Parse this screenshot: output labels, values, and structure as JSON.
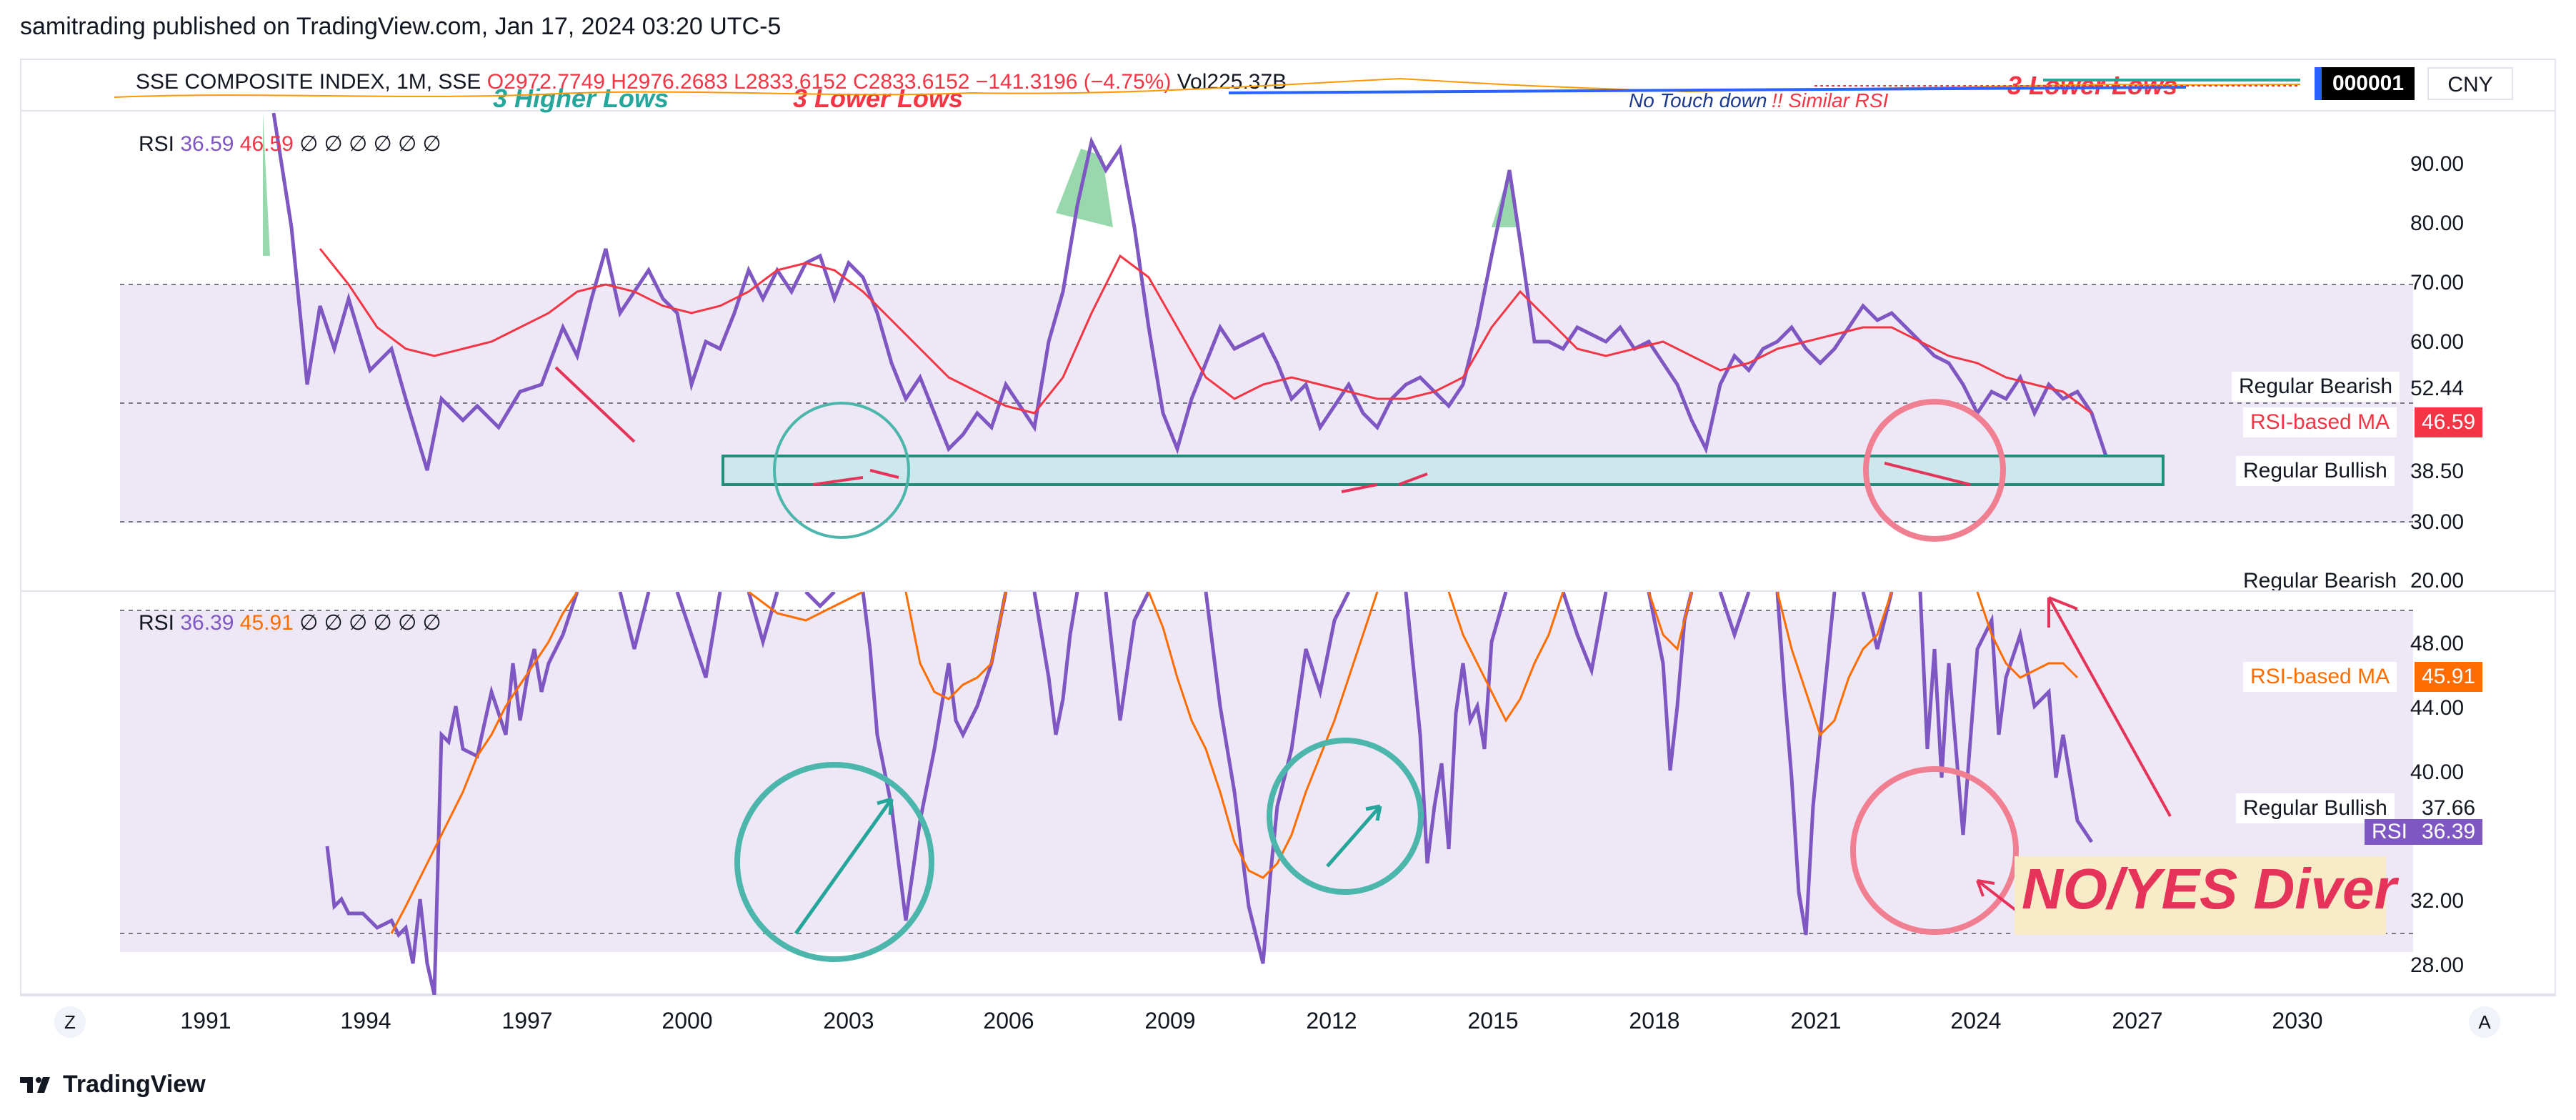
{
  "publish_line": "samitrading published on TradingView.com, Jan 17, 2024 03:20 UTC-5",
  "header": {
    "symbol": "SSE COMPOSITE INDEX, 1M, SSE",
    "open": "O2972.7749",
    "high": "H2976.2683",
    "low": "L2833.6152",
    "close": "C2833.6152",
    "change": "−141.3196 (−4.75%)",
    "volume": "Vol225.37B",
    "symbol_badge": "000001",
    "currency": "CNY",
    "overlay_texts": [
      "3 Higher Lows",
      "3 Lower Lows",
      "No Touch down",
      "!! Similar RSI",
      "3 Lower Lows"
    ]
  },
  "pane1": {
    "label": "RSI",
    "rsi_value": "36.59",
    "ma_value": "46.59",
    "placeholders": "∅ ∅ ∅ ∅ ∅ ∅",
    "y_ticks": [
      "90.00",
      "80.00",
      "70.00",
      "60.00",
      "52.44",
      "38.50",
      "30.00",
      "20.00"
    ],
    "tags": {
      "bearish": "Regular Bearish",
      "bearish_value": "52.44",
      "ma_label": "RSI-based MA",
      "ma_value": "46.59",
      "bullish": "Regular Bullish",
      "bullish_value": "38.50"
    }
  },
  "pane2": {
    "label": "RSI",
    "rsi_value": "36.39",
    "ma_value": "45.91",
    "placeholders": "∅ ∅ ∅ ∅ ∅ ∅",
    "y_ticks": [
      "48.00",
      "44.00",
      "40.00",
      "36.39",
      "32.00",
      "28.00"
    ],
    "tags": {
      "bearish_cut": "Regular Bearish",
      "ma_label": "RSI-based MA",
      "ma_value": "45.91",
      "bullish": "Regular Bullish",
      "bullish_value": "37.66",
      "rsi_label": "RSI",
      "rsi_value": "36.39"
    }
  },
  "x_axis": [
    "1991",
    "1994",
    "1997",
    "2000",
    "2003",
    "2006",
    "2009",
    "2012",
    "2015",
    "2018",
    "2021",
    "2024",
    "2027",
    "2030"
  ],
  "annotation": "NO/YES Diver",
  "buttons": {
    "zoom": "Z",
    "auto": "A"
  },
  "logo_text": "TradingView",
  "colors": {
    "rsi_line": "#7e57c2",
    "ma_line_top": "#f23645",
    "ma_line_bottom": "#ff6d00",
    "band_fill": "#ede7f6",
    "teal": "#4db6ac",
    "pink": "#f07f92",
    "red_arrow": "#e5335a"
  }
}
